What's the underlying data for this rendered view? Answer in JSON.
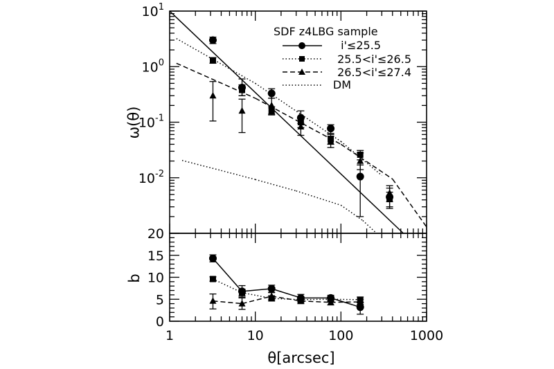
{
  "chart_data": [
    {
      "type": "scatter",
      "panel": "top",
      "ylabel": "ω(θ)",
      "xscale": "log",
      "yscale": "log",
      "xlim": [
        1,
        1000
      ],
      "ylim": [
        0.001,
        10
      ],
      "x_ticks": [
        "1",
        "10",
        "100",
        "1000"
      ],
      "y_ticks": [
        {
          "base": "10",
          "exp": "-2",
          "value": 0.01
        },
        {
          "base": "10",
          "exp": "-1",
          "value": 0.1
        },
        {
          "base": "10",
          "exp": "0",
          "value": 1
        },
        {
          "base": "10",
          "exp": "1",
          "value": 10
        }
      ],
      "legend": {
        "title": "SDF z4LBG sample",
        "placement": "top-right",
        "entries": [
          "i'≤25.5",
          "25.5<i'≤26.5",
          "26.5<i'≤27.4",
          "DM"
        ]
      },
      "series": [
        {
          "name": "i'≤25.5",
          "marker": "circle",
          "points": [
            {
              "x": 3.2,
              "y": 3.0,
              "lo": 2.6,
              "hi": 3.4
            },
            {
              "x": 7.0,
              "y": 0.42,
              "lo": 0.3,
              "hi": 0.6
            },
            {
              "x": 15.5,
              "y": 0.33,
              "lo": 0.27,
              "hi": 0.4
            },
            {
              "x": 34.0,
              "y": 0.12,
              "lo": 0.095,
              "hi": 0.16
            },
            {
              "x": 76.0,
              "y": 0.077,
              "lo": 0.063,
              "hi": 0.09
            },
            {
              "x": 168.0,
              "y": 0.0105,
              "lo": 0.002,
              "hi": 0.017
            },
            {
              "x": 370.0,
              "y": 0.0045,
              "lo": 0.0028,
              "hi": 0.0065
            }
          ]
        },
        {
          "name": "25.5<i'≤26.5",
          "marker": "square",
          "points": [
            {
              "x": 3.2,
              "y": 1.3,
              "lo": 1.15,
              "hi": 1.45
            },
            {
              "x": 7.0,
              "y": 0.38,
              "lo": 0.3,
              "hi": 0.47
            },
            {
              "x": 15.5,
              "y": 0.16,
              "lo": 0.135,
              "hi": 0.19
            },
            {
              "x": 34.0,
              "y": 0.1,
              "lo": 0.08,
              "hi": 0.12
            },
            {
              "x": 76.0,
              "y": 0.049,
              "lo": 0.04,
              "hi": 0.06
            },
            {
              "x": 168.0,
              "y": 0.026,
              "lo": 0.021,
              "hi": 0.031
            },
            {
              "x": 370.0,
              "y": 0.0042,
              "lo": 0.003,
              "hi": 0.0055
            }
          ]
        },
        {
          "name": "26.5<i'≤27.4",
          "marker": "triangle",
          "points": [
            {
              "x": 3.2,
              "y": 0.3,
              "lo": 0.105,
              "hi": 0.54
            },
            {
              "x": 7.0,
              "y": 0.16,
              "lo": 0.065,
              "hi": 0.26
            },
            {
              "x": 15.5,
              "y": 0.2,
              "lo": 0.14,
              "hi": 0.27
            },
            {
              "x": 34.0,
              "y": 0.083,
              "lo": 0.058,
              "hi": 0.12
            },
            {
              "x": 76.0,
              "y": 0.045,
              "lo": 0.035,
              "hi": 0.056
            },
            {
              "x": 168.0,
              "y": 0.02,
              "lo": 0.014,
              "hi": 0.028
            },
            {
              "x": 370.0,
              "y": 0.0053,
              "lo": 0.0037,
              "hi": 0.0072
            }
          ]
        }
      ],
      "fit_lines": [
        {
          "name": "i'≤25.5",
          "style": "solid",
          "points": [
            [
              1,
              10
            ],
            [
              1000,
              0.0004
            ]
          ]
        },
        {
          "name": "25.5<i'≤26.5",
          "style": "dotted",
          "points": [
            [
              1.2,
              3.2
            ],
            [
              10,
              0.5
            ],
            [
              100,
              0.045
            ],
            [
              300,
              0.011
            ]
          ]
        },
        {
          "name": "26.5<i'≤27.4",
          "style": "dashed",
          "points": [
            [
              1.2,
              1.15
            ],
            [
              10,
              0.27
            ],
            [
              100,
              0.04
            ],
            [
              400,
              0.0095
            ],
            [
              1000,
              0.0013
            ]
          ]
        },
        {
          "name": "DM",
          "style": "dotted",
          "points": [
            [
              1.4,
              0.0205
            ],
            [
              4,
              0.0135
            ],
            [
              10,
              0.0093
            ],
            [
              30,
              0.0058
            ],
            [
              100,
              0.0032
            ],
            [
              180,
              0.0017
            ],
            [
              270,
              0.00095
            ]
          ]
        }
      ]
    },
    {
      "type": "scatter",
      "panel": "bottom",
      "xlabel": "θ[arcsec]",
      "ylabel": "b",
      "xscale": "log",
      "xlim": [
        1,
        1000
      ],
      "ylim": [
        0,
        20
      ],
      "x_ticks": [
        "1",
        "10",
        "100",
        "1000"
      ],
      "y_ticks": [
        "0",
        "5",
        "10",
        "15",
        "20"
      ],
      "series": [
        {
          "name": "i'≤25.5",
          "marker": "circle",
          "line": "solid",
          "points": [
            {
              "x": 3.2,
              "y": 14.3,
              "lo": 13.5,
              "hi": 15.1
            },
            {
              "x": 7.0,
              "y": 6.8,
              "lo": 5.5,
              "hi": 8.1
            },
            {
              "x": 15.5,
              "y": 7.4,
              "lo": 6.6,
              "hi": 8.2
            },
            {
              "x": 34.0,
              "y": 5.3,
              "lo": 4.5,
              "hi": 6.1
            },
            {
              "x": 76.0,
              "y": 5.3,
              "lo": 4.7,
              "hi": 5.9
            },
            {
              "x": 168.0,
              "y": 3.2,
              "lo": 1.6,
              "hi": 4.2
            }
          ]
        },
        {
          "name": "25.5<i'≤26.5",
          "marker": "square",
          "line": "dotted",
          "points": [
            {
              "x": 3.2,
              "y": 9.6,
              "lo": 9.1,
              "hi": 10.1
            },
            {
              "x": 7.0,
              "y": 6.5,
              "lo": 5.8,
              "hi": 7.3
            },
            {
              "x": 15.5,
              "y": 5.2,
              "lo": 4.6,
              "hi": 5.8
            },
            {
              "x": 34.0,
              "y": 4.9,
              "lo": 4.3,
              "hi": 5.5
            },
            {
              "x": 76.0,
              "y": 5.0,
              "lo": 4.5,
              "hi": 5.5
            },
            {
              "x": 168.0,
              "y": 4.9,
              "lo": 4.3,
              "hi": 5.5
            }
          ]
        },
        {
          "name": "26.5<i'≤27.4",
          "marker": "triangle",
          "line": "dashed",
          "points": [
            {
              "x": 3.2,
              "y": 4.6,
              "lo": 2.8,
              "hi": 6.2
            },
            {
              "x": 7.0,
              "y": 4.0,
              "lo": 2.7,
              "hi": 5.3
            },
            {
              "x": 15.5,
              "y": 5.7,
              "lo": 4.9,
              "hi": 6.5
            },
            {
              "x": 34.0,
              "y": 4.6,
              "lo": 4.0,
              "hi": 5.3
            },
            {
              "x": 76.0,
              "y": 4.3,
              "lo": 3.7,
              "hi": 4.9
            },
            {
              "x": 168.0,
              "y": 4.4,
              "lo": 3.8,
              "hi": 5.0
            }
          ]
        }
      ]
    }
  ]
}
